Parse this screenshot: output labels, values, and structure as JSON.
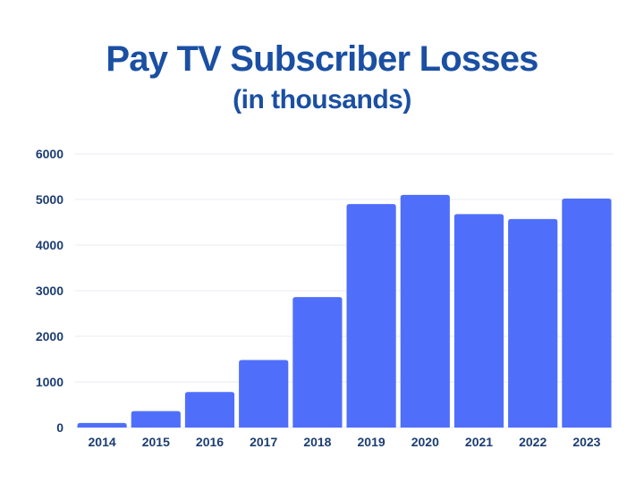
{
  "colors": {
    "bar": "#4f6ffb",
    "title": "#1a4fa3",
    "tick_text": "#1c3d72",
    "grid": "#e8ebf2"
  },
  "chart_data": {
    "type": "bar",
    "title": "Pay TV Subscriber Losses",
    "subtitle": "(in thousands)",
    "xlabel": "",
    "ylabel": "",
    "categories": [
      "2014",
      "2015",
      "2016",
      "2017",
      "2018",
      "2019",
      "2020",
      "2021",
      "2022",
      "2023"
    ],
    "values": [
      100,
      360,
      780,
      1480,
      2860,
      4900,
      5100,
      4680,
      4570,
      5020
    ],
    "ylim": [
      0,
      6000
    ],
    "yticks": [
      0,
      1000,
      2000,
      3000,
      4000,
      5000,
      6000
    ],
    "grid": true,
    "legend": "none"
  }
}
